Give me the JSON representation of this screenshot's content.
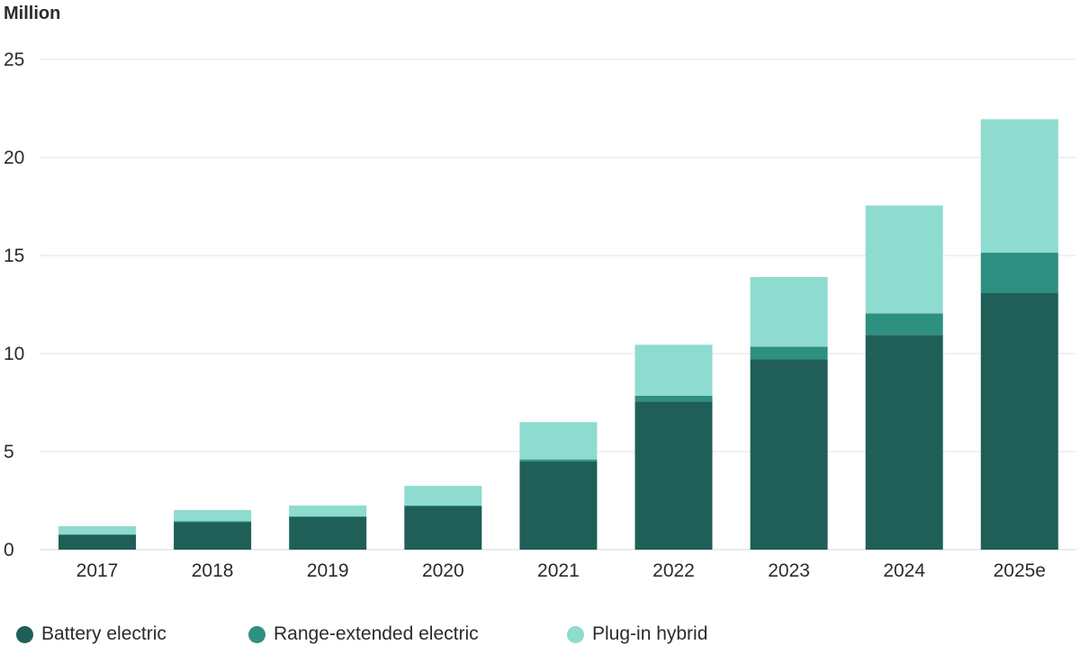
{
  "chart_data": {
    "type": "bar",
    "stacked": true,
    "unit_label": "Million",
    "categories": [
      "2017",
      "2018",
      "2019",
      "2020",
      "2021",
      "2022",
      "2023",
      "2024",
      "2025e"
    ],
    "series": [
      {
        "name": "Battery electric",
        "color": "#1f5f57",
        "values": [
          0.75,
          1.4,
          1.65,
          2.2,
          4.5,
          7.55,
          9.7,
          10.95,
          13.1
        ]
      },
      {
        "name": "Range-extended electric",
        "color": "#2e9080",
        "values": [
          0.03,
          0.05,
          0.05,
          0.05,
          0.1,
          0.3,
          0.65,
          1.1,
          2.05
        ]
      },
      {
        "name": "Plug-in hybrid",
        "color": "#8edbcf",
        "values": [
          0.42,
          0.57,
          0.55,
          1.0,
          1.9,
          2.6,
          3.55,
          5.5,
          6.8
        ]
      }
    ],
    "ylim": [
      0,
      25
    ],
    "yticks": [
      0,
      5,
      10,
      15,
      20,
      25
    ],
    "grid": true,
    "legend_position": "bottom-left"
  }
}
